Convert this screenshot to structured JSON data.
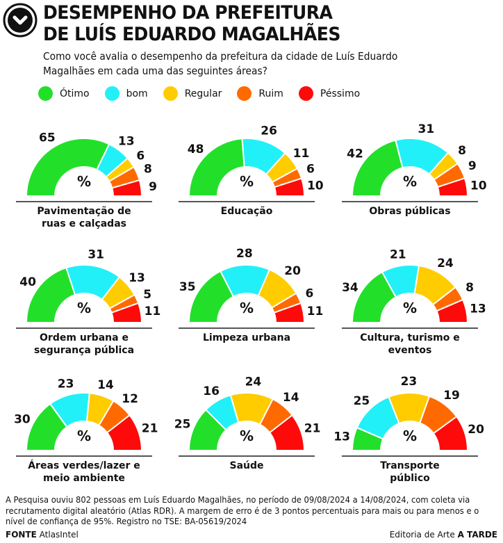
{
  "header": {
    "logo_icon": "chevron-down-circle-icon",
    "title_line1": "DESEMPENHO DA PREFEITURA",
    "title_line2": "DE LUÍS EDUARDO MAGALHÃES",
    "subtitle": "Como você avalia o desempenho da prefeitura da cidade de Luís Eduardo Magalhães em cada uma das seguintes áreas?"
  },
  "legend": [
    {
      "label": "Ótimo",
      "color": "#22e02a"
    },
    {
      "label": "bom",
      "color": "#22f0f8"
    },
    {
      "label": "Regular",
      "color": "#ffcc00"
    },
    {
      "label": "Ruim",
      "color": "#ff6a00"
    },
    {
      "label": "Péssimo",
      "color": "#ff0a0a"
    }
  ],
  "chart_data": {
    "type": "pie",
    "variant": "half-donut",
    "unit": "%",
    "center_label": "%",
    "categories": [
      "Ótimo",
      "bom",
      "Regular",
      "Ruim",
      "Péssimo"
    ],
    "colors": [
      "#22e02a",
      "#22f0f8",
      "#ffcc00",
      "#ff6a00",
      "#ff0a0a"
    ],
    "panels": [
      {
        "title": "Pavimentação de ruas e calçadas",
        "title_lines": [
          "Pavimentação de",
          "ruas e calçadas"
        ],
        "values": [
          65,
          13,
          6,
          8,
          9
        ]
      },
      {
        "title": "Educação",
        "title_lines": [
          "Educação"
        ],
        "values": [
          48,
          26,
          11,
          6,
          10
        ]
      },
      {
        "title": "Obras públicas",
        "title_lines": [
          "Obras públicas"
        ],
        "values": [
          42,
          31,
          8,
          9,
          10
        ]
      },
      {
        "title": "Ordem urbana e segurança pública",
        "title_lines": [
          "Ordem urbana e",
          "segurança pública"
        ],
        "values": [
          40,
          31,
          13,
          5,
          11
        ]
      },
      {
        "title": "Limpeza urbana",
        "title_lines": [
          "Limpeza urbana"
        ],
        "values": [
          35,
          28,
          20,
          6,
          11
        ]
      },
      {
        "title": "Cultura, turismo e eventos",
        "title_lines": [
          "Cultura, turismo e",
          "eventos"
        ],
        "values": [
          34,
          21,
          24,
          8,
          13
        ]
      },
      {
        "title": "Áreas verdes/lazer e meio ambiente",
        "title_lines": [
          "Áreas verdes/lazer e",
          "meio ambiente"
        ],
        "values": [
          30,
          23,
          14,
          12,
          21
        ]
      },
      {
        "title": "Saúde",
        "title_lines": [
          "Saúde"
        ],
        "values": [
          25,
          16,
          24,
          14,
          21
        ]
      },
      {
        "title": "Transporte público",
        "title_lines": [
          "Transporte",
          "público"
        ],
        "values": [
          13,
          25,
          23,
          19,
          20
        ]
      }
    ]
  },
  "footer": {
    "note": "A Pesquisa ouviu 802 pessoas em Luís Eduardo Magalhães, no período de 09/08/2024 a 14/08/2024, com coleta via recrutamento digital aleatório (Atlas RDR). A margem de erro é de 3 pontos percentuais para mais ou para menos e o nível de confiança de 95%. Registro no TSE: BA-05619/2024",
    "source_label": "FONTE",
    "source_name": "AtlasIntel",
    "credit_prefix": "Editoria de Arte",
    "credit_name": "A TARDE"
  }
}
